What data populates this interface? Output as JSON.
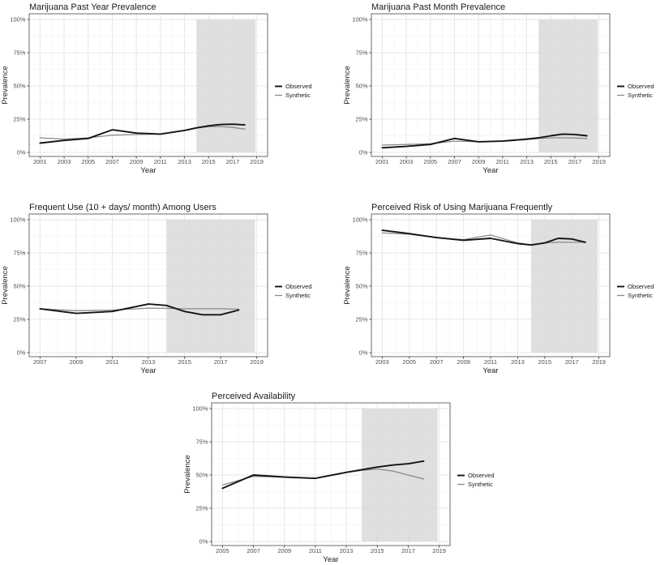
{
  "figure": {
    "background": "#ffffff",
    "x_axis_label": "Year",
    "y_axis_label": "Prevalence",
    "y_tick_labels": [
      "0%",
      "25%",
      "50%",
      "75%",
      "100%"
    ],
    "legend": {
      "position": "right",
      "items": [
        {
          "label": "Observed",
          "color": "#141414",
          "stroke_width": 1.9
        },
        {
          "label": "Synthetic",
          "color": "#8a8a8a",
          "stroke_width": 1.3
        }
      ]
    },
    "colors": {
      "observed_line": "#141414",
      "synthetic_line": "#8a8a8a",
      "shaded_region": "#d9d9d9",
      "grid_major": "#e7e7e7",
      "grid_minor": "#f3f3f3",
      "panel_border": "#6b6b6b",
      "tick_label": "#4d4d4d",
      "title_text": "#1a1a1a"
    }
  },
  "chart_data": [
    {
      "type": "line",
      "title": "Marijuana Past Year Prevalence",
      "xlabel": "Year",
      "ylabel": "Prevalence",
      "ylim": [
        0,
        100
      ],
      "grid": true,
      "legend_position": "right",
      "y_ticks": [
        0,
        25,
        50,
        75,
        100
      ],
      "x_ticks": [
        2001,
        2003,
        2005,
        2007,
        2009,
        2011,
        2013,
        2015,
        2017,
        2019
      ],
      "shaded_region": [
        2014,
        2018.9
      ],
      "x": [
        2001,
        2003,
        2005,
        2007,
        2009,
        2011,
        2013,
        2014,
        2015,
        2016,
        2017,
        2018
      ],
      "series": [
        {
          "name": "Observed",
          "values": [
            7,
            9,
            10.5,
            17,
            14.5,
            13.8,
            16.5,
            18.5,
            20,
            21,
            21.2,
            20.7
          ]
        },
        {
          "name": "Synthetic",
          "values": [
            11,
            10,
            11,
            13,
            13.5,
            13.8,
            16.5,
            18.3,
            19.3,
            19.5,
            18.8,
            17.5
          ]
        }
      ]
    },
    {
      "type": "line",
      "title": "Marijuana Past Month Prevalence",
      "xlabel": "Year",
      "ylabel": "Prevalence",
      "ylim": [
        0,
        100
      ],
      "grid": true,
      "legend_position": "right",
      "y_ticks": [
        0,
        25,
        50,
        75,
        100
      ],
      "x_ticks": [
        2001,
        2003,
        2005,
        2007,
        2009,
        2011,
        2013,
        2015,
        2017,
        2019
      ],
      "shaded_region": [
        2014,
        2018.9
      ],
      "x": [
        2001,
        2003,
        2005,
        2007,
        2009,
        2011,
        2013,
        2014,
        2015,
        2016,
        2017,
        2018
      ],
      "series": [
        {
          "name": "Observed",
          "values": [
            3.5,
            4.5,
            6,
            10.5,
            8,
            8.5,
            10,
            11,
            12.5,
            13.8,
            13.5,
            12.5
          ]
        },
        {
          "name": "Synthetic",
          "values": [
            5.5,
            6,
            6.5,
            8.5,
            8,
            8.5,
            9.5,
            10.5,
            11,
            11,
            10.8,
            10.5
          ]
        }
      ]
    },
    {
      "type": "line",
      "title": "Frequent Use (10 + days/ month) Among Users",
      "xlabel": "Year",
      "ylabel": "Prevalence",
      "ylim": [
        0,
        100
      ],
      "grid": true,
      "legend_position": "right",
      "y_ticks": [
        0,
        25,
        50,
        75,
        100
      ],
      "x_ticks": [
        2007,
        2009,
        2011,
        2013,
        2015,
        2017,
        2019
      ],
      "shaded_region": [
        2014,
        2018.9
      ],
      "x": [
        2007,
        2009,
        2011,
        2013,
        2014,
        2015,
        2016,
        2017,
        2018
      ],
      "series": [
        {
          "name": "Observed",
          "values": [
            33,
            29.5,
            31,
            36.5,
            35.5,
            31,
            28.5,
            28.5,
            32
          ]
        },
        {
          "name": "Synthetic",
          "values": [
            33,
            31.5,
            32,
            33.5,
            33.3,
            33,
            33,
            33,
            32.7
          ]
        }
      ]
    },
    {
      "type": "line",
      "title": "Perceived Risk of Using Marijuana Frequently",
      "xlabel": "Year",
      "ylabel": "Prevalence",
      "ylim": [
        0,
        100
      ],
      "grid": true,
      "legend_position": "right",
      "y_ticks": [
        0,
        25,
        50,
        75,
        100
      ],
      "x_ticks": [
        2003,
        2005,
        2007,
        2009,
        2011,
        2013,
        2015,
        2017,
        2019
      ],
      "shaded_region": [
        2014,
        2018.9
      ],
      "x": [
        2003,
        2005,
        2007,
        2009,
        2011,
        2013,
        2014,
        2015,
        2016,
        2017,
        2018
      ],
      "series": [
        {
          "name": "Observed",
          "values": [
            92,
            89.5,
            86.5,
            84.5,
            86,
            82,
            81,
            82.5,
            86,
            85.5,
            83
          ]
        },
        {
          "name": "Synthetic",
          "values": [
            90,
            89,
            86.5,
            85,
            88.5,
            82.5,
            81,
            82.5,
            83,
            83,
            83
          ]
        }
      ]
    },
    {
      "type": "line",
      "title": "Perceived Availability",
      "xlabel": "Year",
      "ylabel": "Prevalence",
      "ylim": [
        0,
        100
      ],
      "grid": true,
      "legend_position": "right",
      "y_ticks": [
        0,
        25,
        50,
        75,
        100
      ],
      "x_ticks": [
        2005,
        2007,
        2009,
        2011,
        2013,
        2015,
        2017,
        2019
      ],
      "shaded_region": [
        2014,
        2018.9
      ],
      "x": [
        2005,
        2007,
        2009,
        2011,
        2013,
        2014,
        2015,
        2016,
        2017,
        2018
      ],
      "series": [
        {
          "name": "Observed",
          "values": [
            40,
            50,
            48.5,
            47.5,
            52,
            54,
            56,
            57.5,
            58.5,
            60.5
          ]
        },
        {
          "name": "Synthetic",
          "values": [
            42.5,
            49,
            48.5,
            47.5,
            52,
            53.5,
            54.5,
            53,
            50,
            47
          ]
        }
      ]
    }
  ]
}
